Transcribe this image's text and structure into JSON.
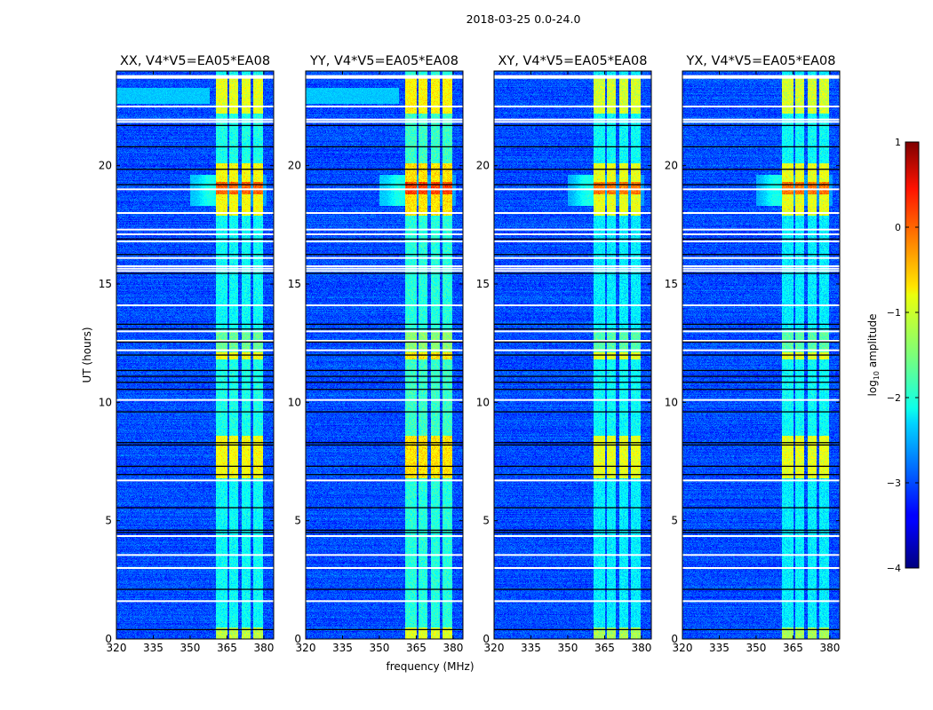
{
  "chart_data": {
    "type": "heatmap",
    "title": "2018-03-25 0.0-24.0",
    "xlabel": "frequency (MHz)",
    "ylabel": "UT (hours)",
    "xlim": [
      320,
      384
    ],
    "ylim": [
      0,
      24
    ],
    "xticks": [
      320,
      335,
      350,
      365,
      380
    ],
    "yticks": [
      0,
      5,
      10,
      15,
      20
    ],
    "panels": [
      {
        "title": "XX, V4*V5=EA05*EA08",
        "pol": "XX",
        "low_freq_stripes": true,
        "rfi_scale": 1.0
      },
      {
        "title": "YY, V4*V5=EA05*EA08",
        "pol": "YY",
        "low_freq_stripes": true,
        "rfi_scale": 1.08
      },
      {
        "title": "XY, V4*V5=EA05*EA08",
        "pol": "XY",
        "low_freq_stripes": false,
        "rfi_scale": 0.95
      },
      {
        "title": "YX, V4*V5=EA05*EA08",
        "pol": "YX",
        "low_freq_stripes": false,
        "rfi_scale": 0.95
      }
    ],
    "colorbar": {
      "label_main": "log",
      "label_sub": "10",
      "label_rest": " amplitude",
      "range": [
        -4,
        1
      ],
      "ticks": [
        1,
        0,
        -1,
        -2,
        -3,
        -4
      ],
      "tick_labels": [
        "1",
        "0",
        "−1",
        "−2",
        "−3",
        "−4"
      ],
      "colormap": "jet"
    },
    "baseline_log_amplitude": -3.0,
    "rfi_channels_mhz": [
      [
        360.4,
        365.1
      ],
      [
        365.8,
        369.5
      ],
      [
        370.9,
        374.5
      ],
      [
        375.6,
        379.6
      ]
    ],
    "rfi_activity_hours": [
      {
        "from": 0.0,
        "to": 0.5,
        "level": -1.2
      },
      {
        "from": 0.5,
        "to": 6.8,
        "level": -2.1
      },
      {
        "from": 6.8,
        "to": 8.6,
        "level": -0.9
      },
      {
        "from": 8.6,
        "to": 11.8,
        "level": -2.0
      },
      {
        "from": 11.8,
        "to": 12.1,
        "level": -0.9
      },
      {
        "from": 12.1,
        "to": 13.0,
        "level": -1.6
      },
      {
        "from": 13.0,
        "to": 17.9,
        "level": -2.1
      },
      {
        "from": 17.9,
        "to": 18.8,
        "level": -0.9
      },
      {
        "from": 18.8,
        "to": 19.3,
        "level": -0.1
      },
      {
        "from": 19.3,
        "to": 20.1,
        "level": -0.9
      },
      {
        "from": 20.1,
        "to": 22.2,
        "level": -2.0
      },
      {
        "from": 22.2,
        "to": 23.7,
        "level": -1.0
      }
    ],
    "flagged_rows_hours": [
      23.75,
      22.5,
      21.95,
      21.85,
      19.0,
      18.0,
      17.3,
      17.1,
      16.8,
      16.1,
      15.55,
      15.65,
      15.75,
      14.1,
      13.0,
      12.6,
      12.2,
      10.1,
      6.7,
      4.35,
      3.55,
      3.0,
      1.6
    ],
    "blank_rows_hours": [
      21.7,
      20.8,
      19.85,
      19.2,
      16.9,
      16.25,
      15.45,
      13.3,
      13.1,
      12.55,
      12.0,
      11.35,
      11.1,
      10.85,
      10.55,
      9.6,
      8.3,
      8.2,
      7.3,
      6.95,
      5.55,
      4.6,
      4.5,
      2.1,
      0.4
    ]
  }
}
